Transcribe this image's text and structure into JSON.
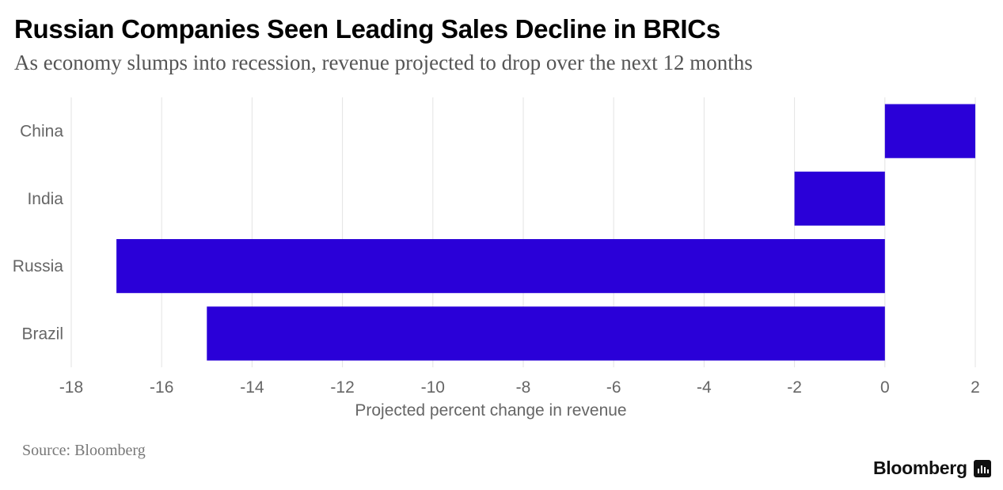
{
  "title": "Russian Companies Seen Leading Sales Decline in BRICs",
  "subtitle": "As economy slumps into recession, revenue projected to drop over the next 12 months",
  "source": "Source: Bloomberg",
  "brand": {
    "name": "Bloomberg",
    "icon": "bloomberg-terminal-icon"
  },
  "colors": {
    "bar": "#2a00d8",
    "grid": "#e3e3e3",
    "tick_text": "#666666"
  },
  "chart_data": {
    "type": "bar",
    "orientation": "horizontal",
    "categories": [
      "China",
      "India",
      "Russia",
      "Brazil"
    ],
    "values": [
      2,
      -2,
      -17,
      -15
    ],
    "xlabel": "Projected percent change in revenue",
    "ylabel": "",
    "xlim": [
      -18,
      2
    ],
    "xticks": [
      "-18",
      "-16",
      "-14",
      "-12",
      "-10",
      "-8",
      "-6",
      "-4",
      "-2",
      "0",
      "2"
    ],
    "grid": true
  }
}
